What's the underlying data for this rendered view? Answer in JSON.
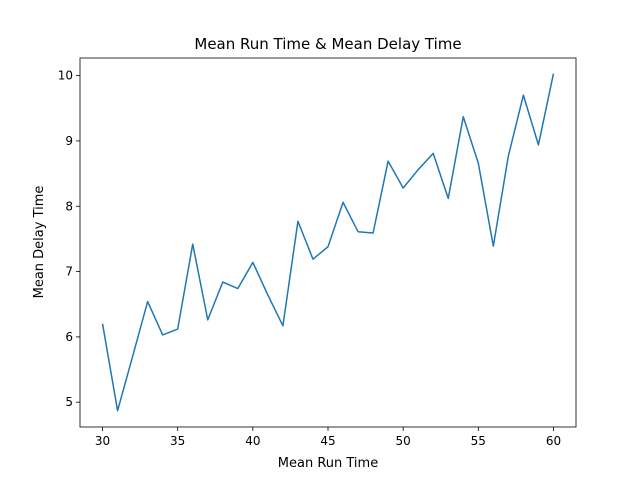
{
  "chart_data": {
    "type": "line",
    "title": "Mean Run Time & Mean Delay Time",
    "xlabel": "Mean Run Time",
    "ylabel": "Mean Delay Time",
    "xlim": [
      28.5,
      61.5
    ],
    "ylim": [
      4.62,
      10.27
    ],
    "xticks": [
      30,
      35,
      40,
      45,
      50,
      55,
      60
    ],
    "yticks": [
      5,
      6,
      7,
      8,
      9,
      10
    ],
    "grid": false,
    "line_color": "#1f77b4",
    "series": [
      {
        "x": [
          30,
          31,
          32,
          33,
          34,
          35,
          36,
          37,
          38,
          39,
          40,
          41,
          42,
          43,
          44,
          45,
          46,
          47,
          48,
          49,
          50,
          51,
          52,
          53,
          54,
          55,
          56,
          57,
          58,
          59,
          60
        ],
        "y": [
          6.2,
          4.87,
          5.7,
          6.54,
          6.03,
          6.12,
          7.42,
          6.26,
          6.84,
          6.74,
          7.14,
          6.64,
          6.17,
          7.77,
          7.19,
          7.38,
          8.06,
          7.61,
          7.59,
          8.69,
          8.28,
          8.56,
          8.81,
          8.12,
          9.37,
          8.66,
          7.39,
          8.77,
          9.7,
          8.94,
          10.03
        ]
      }
    ]
  }
}
